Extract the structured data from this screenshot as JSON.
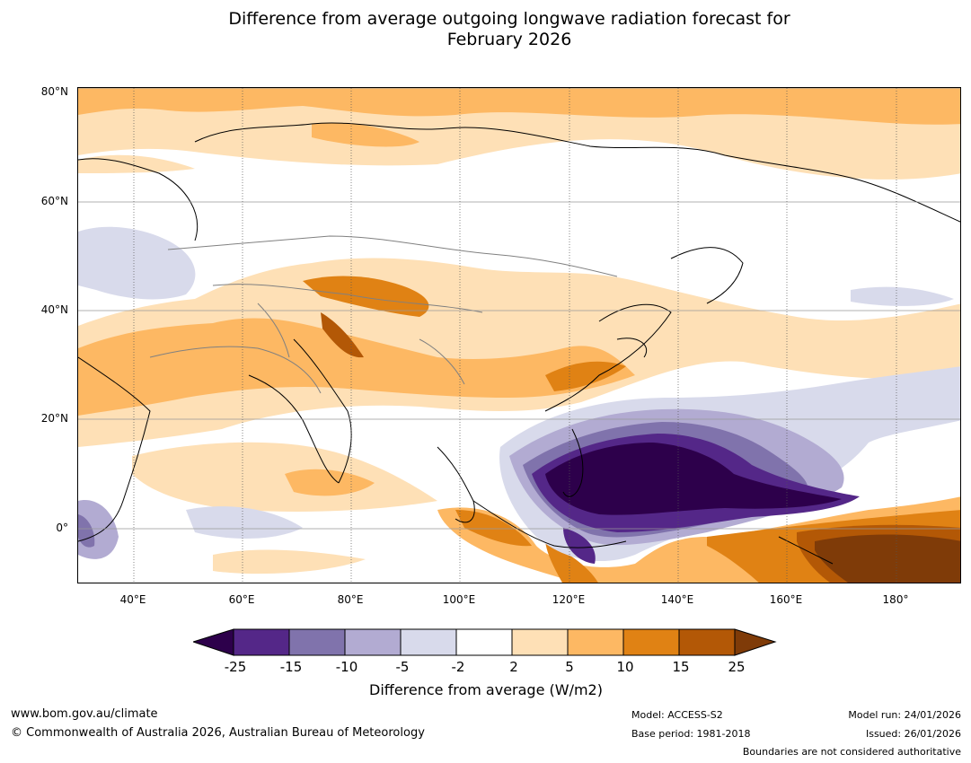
{
  "title_line1": "Difference from average outgoing longwave radiation forecast for",
  "title_line2": "February 2026",
  "lat_labels": [
    "80°N",
    "60°N",
    "40°N",
    "20°N",
    "0°"
  ],
  "lon_labels": [
    "40°E",
    "60°E",
    "80°E",
    "100°E",
    "120°E",
    "140°E",
    "160°E",
    "180°"
  ],
  "colorbar": {
    "title": "Difference from average (W/m2)",
    "ticks": [
      "-25",
      "-15",
      "-10",
      "-5",
      "-2",
      "2",
      "5",
      "10",
      "15",
      "25"
    ],
    "colors": [
      "#2d004b",
      "#542788",
      "#8073ac",
      "#b2abd2",
      "#d8daeb",
      "#ffffff",
      "#fee0b6",
      "#fdb863",
      "#e08214",
      "#b35806",
      "#7f3b08"
    ]
  },
  "footer": {
    "url": "www.bom.gov.au/climate",
    "copyright": "© Commonwealth of Australia 2026, Australian Bureau of Meteorology",
    "model": "Model: ACCESS-S2",
    "base_period": "Base period: 1981-2018",
    "model_run": "Model run: 24/01/2026",
    "issued": "Issued: 26/01/2026",
    "disclaimer": "Boundaries are not considered authoritative"
  }
}
